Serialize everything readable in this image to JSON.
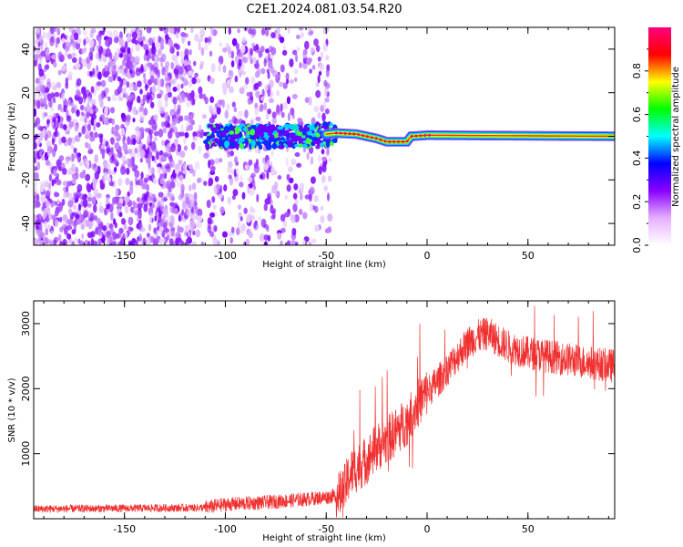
{
  "title": "C2E1.2024.081.03.54.R20",
  "chart_data": [
    {
      "type": "heatmap",
      "xlabel": "Height of straight line (km)",
      "ylabel": "Frequency (Hz)",
      "xlim": [
        -195,
        93
      ],
      "ylim": [
        -50,
        50
      ],
      "xticks": [
        -150,
        -100,
        -50,
        0,
        50
      ],
      "yticks": [
        -40,
        -20,
        0,
        20,
        40
      ],
      "colorbar": {
        "label": "Normalized spectral amplitude",
        "range": [
          0,
          1
        ],
        "ticks": [
          "0.0",
          "0.2",
          "0.4",
          "0.6",
          "0.8"
        ],
        "tick_values": [
          0,
          0.2,
          0.4,
          0.6,
          0.8
        ],
        "colors": [
          "#ffffff",
          "#e6b0ff",
          "#8a00ff",
          "#0000ff",
          "#00ffff",
          "#00ff00",
          "#ffff00",
          "#ff0000",
          "#ff0080"
        ]
      },
      "signal_band": {
        "x_start": -110,
        "x_end": 93,
        "center_hz": [
          [
            -110,
            0
          ],
          [
            -100,
            0
          ],
          [
            -80,
            0
          ],
          [
            -60,
            0
          ],
          [
            -45,
            1.5
          ],
          [
            -35,
            1
          ],
          [
            -25,
            -1
          ],
          [
            -20,
            -2.5
          ],
          [
            -10,
            -2.5
          ],
          [
            -8,
            0
          ],
          [
            0,
            0.5
          ],
          [
            93,
            0
          ]
        ]
      },
      "noise_region": {
        "x_start": -195,
        "x_end": -48
      }
    },
    {
      "type": "line",
      "xlabel": "Height of straight line (km)",
      "ylabel": "SNR (10 * v/v)",
      "xlim": [
        -195,
        93
      ],
      "ylim": [
        0,
        3350
      ],
      "xticks": [
        -150,
        -100,
        -50,
        0,
        50
      ],
      "yticks": [
        1000,
        2000,
        3000
      ],
      "color": "#f03030",
      "envelope": [
        [
          -195,
          150
        ],
        [
          -150,
          160
        ],
        [
          -110,
          170
        ],
        [
          -100,
          220
        ],
        [
          -80,
          250
        ],
        [
          -60,
          300
        ],
        [
          -50,
          330
        ],
        [
          -42,
          380
        ],
        [
          -38,
          700
        ],
        [
          -30,
          900
        ],
        [
          -25,
          1100
        ],
        [
          -20,
          1200
        ],
        [
          -15,
          1350
        ],
        [
          -10,
          1500
        ],
        [
          -5,
          1750
        ],
        [
          0,
          1950
        ],
        [
          5,
          2100
        ],
        [
          10,
          2300
        ],
        [
          15,
          2500
        ],
        [
          20,
          2700
        ],
        [
          25,
          2800
        ],
        [
          30,
          2850
        ],
        [
          35,
          2750
        ],
        [
          40,
          2650
        ],
        [
          50,
          2550
        ],
        [
          60,
          2500
        ],
        [
          70,
          2450
        ],
        [
          80,
          2400
        ],
        [
          93,
          2350
        ]
      ]
    }
  ]
}
